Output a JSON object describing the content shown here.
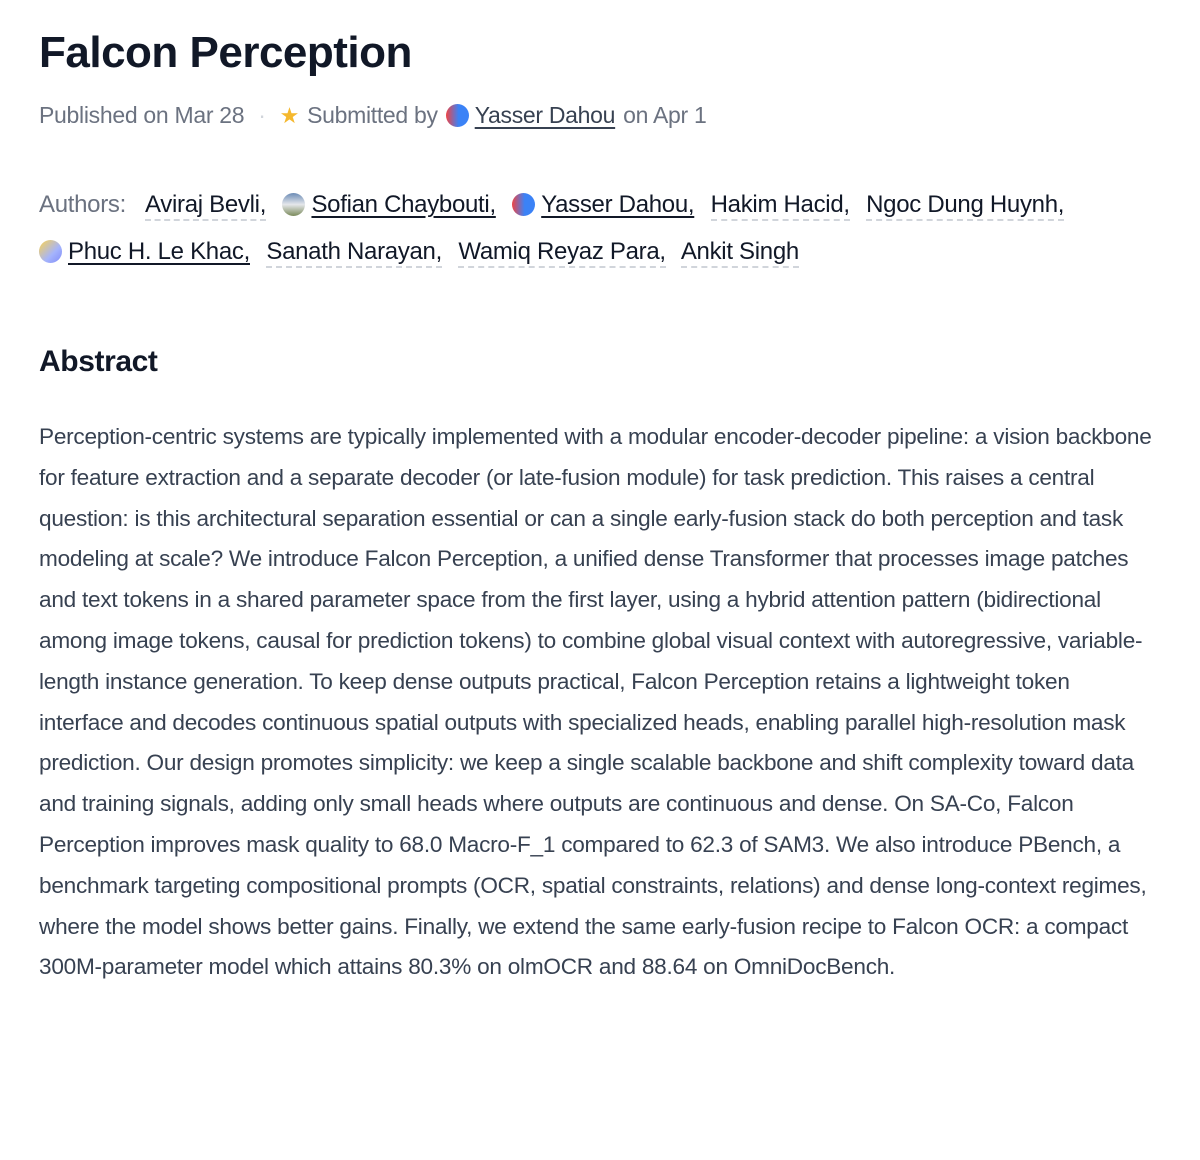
{
  "title": "Falcon Perception",
  "meta": {
    "published": "Published on Mar 28",
    "separator": "·",
    "submitted_by_label": "Submitted by",
    "submitter": "Yasser Dahou",
    "submitted_date": "on Apr 1"
  },
  "authors": {
    "label": "Authors:",
    "list": [
      {
        "name": "Aviraj Bevli,",
        "linked": false
      },
      {
        "name": "Sofian Chaybouti,",
        "linked": true
      },
      {
        "name": "Yasser Dahou,",
        "linked": true
      },
      {
        "name": "Hakim Hacid,",
        "linked": false
      },
      {
        "name": "Ngoc Dung Huynh,",
        "linked": false
      },
      {
        "name": "Phuc H. Le Khac,",
        "linked": true
      },
      {
        "name": "Sanath Narayan,",
        "linked": false
      },
      {
        "name": "Wamiq Reyaz Para,",
        "linked": false
      },
      {
        "name": "Ankit Singh",
        "linked": false
      }
    ]
  },
  "abstract": {
    "heading": "Abstract",
    "text": "Perception-centric systems are typically implemented with a modular encoder-decoder pipeline: a vision backbone for feature extraction and a separate decoder (or late-fusion module) for task prediction. This raises a central question: is this architectural separation essential or can a single early-fusion stack do both perception and task modeling at scale? We introduce Falcon Perception, a unified dense Transformer that processes image patches and text tokens in a shared parameter space from the first layer, using a hybrid attention pattern (bidirectional among image tokens, causal for prediction tokens) to combine global visual context with autoregressive, variable-length instance generation. To keep dense outputs practical, Falcon Perception retains a lightweight token interface and decodes continuous spatial outputs with specialized heads, enabling parallel high-resolution mask prediction. Our design promotes simplicity: we keep a single scalable backbone and shift complexity toward data and training signals, adding only small heads where outputs are continuous and dense. On SA-Co, Falcon Perception improves mask quality to 68.0 Macro-F_1 compared to 62.3 of SAM3. We also introduce PBench, a benchmark targeting compositional prompts (OCR, spatial constraints, relations) and dense long-context regimes, where the model shows better gains. Finally, we extend the same early-fusion recipe to Falcon OCR: a compact 300M-parameter model which attains 80.3% on olmOCR and 88.64 on OmniDocBench."
  }
}
